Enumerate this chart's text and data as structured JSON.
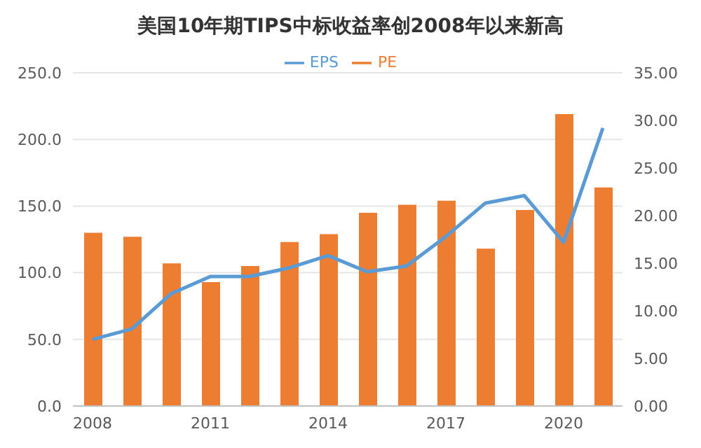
{
  "chart_data": {
    "type": "bar",
    "title": "美国10年期TIPS中标收益率创2008年以来新高",
    "categories": [
      "2008",
      null,
      null,
      "2011",
      null,
      null,
      "2014",
      null,
      null,
      "2017",
      null,
      null,
      "2020",
      null
    ],
    "series": [
      {
        "name": "PE",
        "color": "#ed7d31",
        "values": [
          130,
          127,
          107,
          93,
          105,
          123,
          129,
          145,
          151,
          154,
          118,
          147,
          219,
          164
        ]
      },
      {
        "name": "EPS",
        "type": "line",
        "axis": "y2",
        "color": "#5b9bd5",
        "values": [
          7.0,
          8.1,
          11.8,
          13.6,
          13.6,
          14.5,
          15.8,
          14.1,
          14.7,
          17.8,
          21.3,
          22.1,
          17.2,
          29.2
        ]
      }
    ],
    "ylim": [
      0,
      250
    ],
    "yticks": [
      {
        "value": 0,
        "label": "0.0"
      },
      {
        "value": 50,
        "label": "50.0"
      },
      {
        "value": 100,
        "label": "100.0"
      },
      {
        "value": 150,
        "label": "150.0"
      },
      {
        "value": 200,
        "label": "200.0"
      },
      {
        "value": 250,
        "label": "250.0"
      }
    ],
    "y2lim": [
      0,
      35
    ],
    "y2ticks": [
      {
        "value": 0,
        "label": "0.00"
      },
      {
        "value": 5,
        "label": "5.00"
      },
      {
        "value": 10,
        "label": "10.00"
      },
      {
        "value": 15,
        "label": "15.00"
      },
      {
        "value": 20,
        "label": "20.00"
      },
      {
        "value": 25,
        "label": "25.00"
      },
      {
        "value": 30,
        "label": "30.00"
      },
      {
        "value": 35,
        "label": "35.00"
      }
    ],
    "grid": "y",
    "legend": "top",
    "marker": "none",
    "line_style": "solid"
  }
}
